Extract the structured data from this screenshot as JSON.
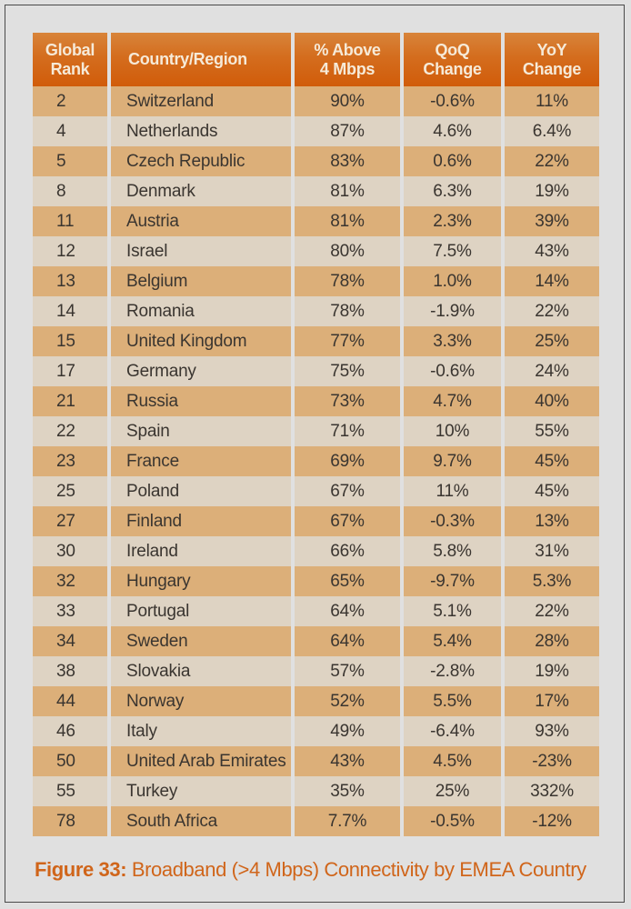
{
  "table": {
    "headers": [
      "Global\nRank",
      "Country/Region",
      "% Above\n4 Mbps",
      "QoQ\nChange",
      "YoY\nChange"
    ],
    "rows": [
      [
        "2",
        "Switzerland",
        "90%",
        "-0.6%",
        "11%"
      ],
      [
        "4",
        "Netherlands",
        "87%",
        "4.6%",
        "6.4%"
      ],
      [
        "5",
        "Czech Republic",
        "83%",
        "0.6%",
        "22%"
      ],
      [
        "8",
        "Denmark",
        "81%",
        "6.3%",
        "19%"
      ],
      [
        "11",
        "Austria",
        "81%",
        "2.3%",
        "39%"
      ],
      [
        "12",
        "Israel",
        "80%",
        "7.5%",
        "43%"
      ],
      [
        "13",
        "Belgium",
        "78%",
        "1.0%",
        "14%"
      ],
      [
        "14",
        "Romania",
        "78%",
        "-1.9%",
        "22%"
      ],
      [
        "15",
        "United Kingdom",
        "77%",
        "3.3%",
        "25%"
      ],
      [
        "17",
        "Germany",
        "75%",
        "-0.6%",
        "24%"
      ],
      [
        "21",
        "Russia",
        "73%",
        "4.7%",
        "40%"
      ],
      [
        "22",
        "Spain",
        "71%",
        "10%",
        "55%"
      ],
      [
        "23",
        "France",
        "69%",
        "9.7%",
        "45%"
      ],
      [
        "25",
        "Poland",
        "67%",
        "11%",
        "45%"
      ],
      [
        "27",
        "Finland",
        "67%",
        "-0.3%",
        "13%"
      ],
      [
        "30",
        "Ireland",
        "66%",
        "5.8%",
        "31%"
      ],
      [
        "32",
        "Hungary",
        "65%",
        "-9.7%",
        "5.3%"
      ],
      [
        "33",
        "Portugal",
        "64%",
        "5.1%",
        "22%"
      ],
      [
        "34",
        "Sweden",
        "64%",
        "5.4%",
        "28%"
      ],
      [
        "38",
        "Slovakia",
        "57%",
        "-2.8%",
        "19%"
      ],
      [
        "44",
        "Norway",
        "52%",
        "5.5%",
        "17%"
      ],
      [
        "46",
        "Italy",
        "49%",
        "-6.4%",
        "93%"
      ],
      [
        "50",
        "United Arab Emirates",
        "43%",
        "4.5%",
        "-23%"
      ],
      [
        "55",
        "Turkey",
        "35%",
        "25%",
        "332%"
      ],
      [
        "78",
        "South Africa",
        "7.7%",
        "-0.5%",
        "-12%"
      ]
    ]
  },
  "caption": {
    "label": "Figure 33:",
    "text": " Broadband (>4 Mbps) Connectivity by EMEA Country"
  },
  "colors": {
    "header_top": "#d8843a",
    "header_bottom": "#d15c0a",
    "header_text": "#f6ead8",
    "row_odd": "#dcaf79",
    "row_even": "#ded3c3",
    "caption": "#d0651a",
    "background": "#e0e0e0"
  }
}
